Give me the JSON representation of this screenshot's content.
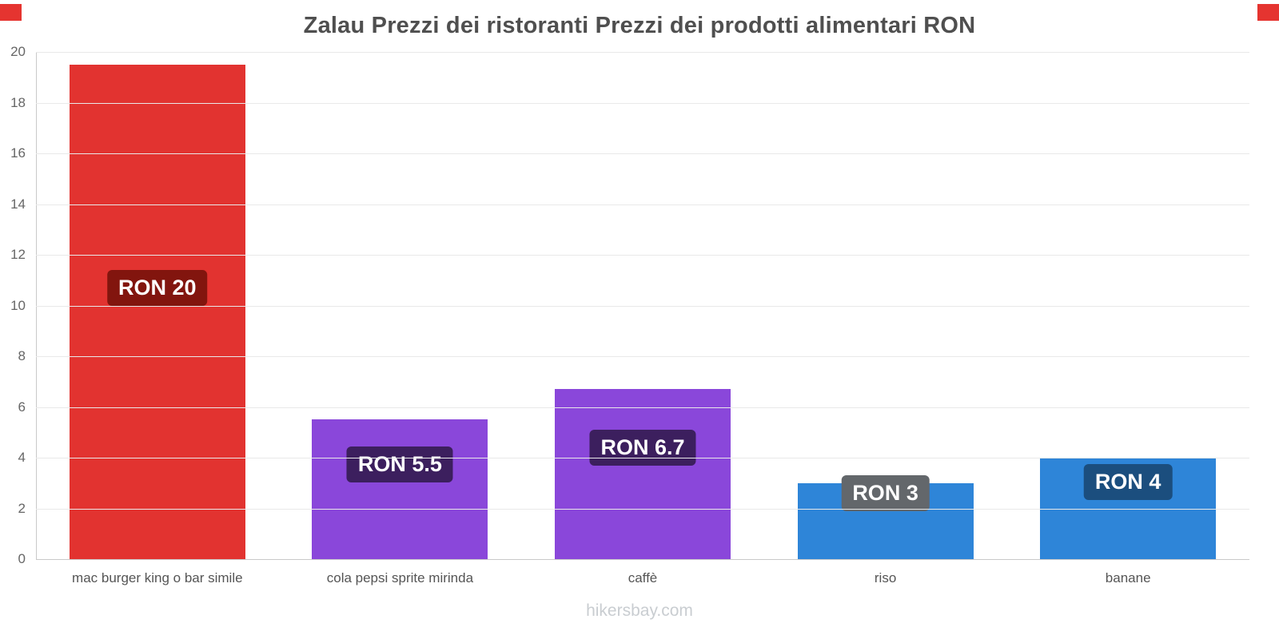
{
  "title": "Zalau Prezzi dei ristoranti Prezzi dei prodotti alimentari RON",
  "footer": "hikersbay.com",
  "chart_data": {
    "type": "bar",
    "title": "Zalau Prezzi dei ristoranti Prezzi dei prodotti alimentari RON",
    "categories": [
      "mac burger king o bar simile",
      "cola pepsi sprite mirinda",
      "caffè",
      "riso",
      "banane"
    ],
    "values": [
      19.5,
      5.5,
      6.7,
      3,
      4
    ],
    "bar_labels": [
      "RON 20",
      "RON 5.5",
      "RON 6.7",
      "RON 3",
      "RON 4"
    ],
    "bar_colors": [
      "#e23330",
      "#8a47da",
      "#8a47da",
      "#2e85d8",
      "#2e85d8"
    ],
    "label_bg_colors": [
      "#82150e",
      "#3c1f5e",
      "#3c1f5e",
      "#63676b",
      "#1b4e7e"
    ],
    "label_center_values": [
      10.7,
      3.75,
      4.4,
      2.6,
      3.05
    ],
    "ylim": [
      0,
      20
    ],
    "yticks": [
      0,
      2,
      4,
      6,
      8,
      10,
      12,
      14,
      16,
      18,
      20
    ],
    "xlabel": "",
    "ylabel": "",
    "grid": "horizontal",
    "legend": "none"
  }
}
